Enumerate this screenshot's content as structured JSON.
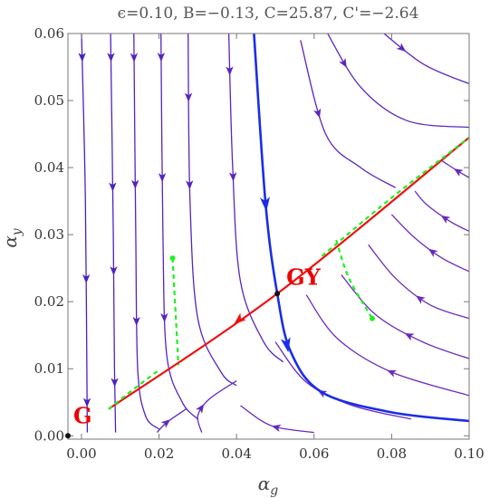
{
  "chart_data": {
    "type": "scatter",
    "title": "ϵ=0.10, B=−0.13, C=25.87, C'=−2.64",
    "xlabel": {
      "main": "α",
      "sub": "g"
    },
    "ylabel": {
      "main": "α",
      "sub": "y"
    },
    "xlim": [
      -0.0035,
      0.1
    ],
    "ylim": [
      -0.0005,
      0.06
    ],
    "x_ticks": [
      0.0,
      0.02,
      0.04,
      0.06,
      0.08,
      0.1
    ],
    "x_tick_labels": [
      "0.00",
      "0.02",
      "0.04",
      "0.06",
      "0.08",
      "0.10"
    ],
    "y_ticks": [
      0.0,
      0.01,
      0.02,
      0.03,
      0.04,
      0.05,
      0.06
    ],
    "y_tick_labels": [
      "0.00",
      "0.01",
      "0.02",
      "0.03",
      "0.04",
      "0.05",
      "0.06"
    ],
    "grid": false,
    "fixed_points": [
      {
        "label": "G",
        "x": -0.0035,
        "y": 0.0
      },
      {
        "label": "GY",
        "x": 0.0505,
        "y": 0.0212
      }
    ],
    "colors": {
      "separatrix": "#ee1111",
      "critical_curve": "#22ee22",
      "strong_flow": "#1a2de8",
      "flow_violet": "#7b2fb8",
      "flow_blue": "#3a1cc8",
      "frame": "#777777",
      "point": "#111111"
    },
    "separatrix": {
      "x": [
        0.007,
        0.0505,
        0.1
      ],
      "y": [
        0.004,
        0.0212,
        0.0445
      ]
    },
    "critical_curves": [
      {
        "x": [
          0.0235,
          0.0243,
          0.025
        ],
        "y": [
          0.0265,
          0.018,
          0.0105
        ]
      },
      {
        "x": [
          0.0657,
          0.069,
          0.075
        ],
        "y": [
          0.0292,
          0.0235,
          0.0175
        ]
      },
      {
        "x": [
          0.007,
          0.014,
          0.02
        ],
        "y": [
          0.004,
          0.0072,
          0.0098
        ]
      },
      {
        "x": [
          0.062,
          0.08,
          0.1
        ],
        "y": [
          0.0268,
          0.0355,
          0.0445
        ]
      }
    ],
    "strong_flow_line": {
      "x": [
        0.0445,
        0.0475,
        0.0505,
        0.054,
        0.062,
        0.08,
        0.1
      ],
      "y": [
        0.06,
        0.0345,
        0.0212,
        0.0125,
        0.0065,
        0.0035,
        0.0022
      ]
    },
    "flow_lines": [
      {
        "x": [
          0.0,
          0.001,
          0.0015
        ],
        "y": [
          0.06,
          0.035,
          0.0005
        ],
        "arrows": [
          0.0565,
          0.0235,
          0.005
        ]
      },
      {
        "x": [
          0.0075,
          0.0082,
          0.0085,
          0.0088
        ],
        "y": [
          0.06,
          0.03,
          0.01,
          0.0005
        ],
        "arrows": [
          0.0565,
          0.037,
          0.0245,
          0.008
        ]
      },
      {
        "x": [
          0.0135,
          0.014,
          0.0145,
          0.0165,
          0.02
        ],
        "y": [
          0.06,
          0.03,
          0.01,
          0.003,
          0.001
        ],
        "arrows": [
          0.0565,
          0.0375,
          0.017
        ]
      },
      {
        "x": [
          0.0205,
          0.021,
          0.022,
          0.026,
          0.03
        ],
        "y": [
          0.06,
          0.03,
          0.012,
          0.005,
          0.0025
        ],
        "arrows": [
          0.0565,
          0.0385,
          0.0175
        ]
      },
      {
        "x": [
          0.0275,
          0.028,
          0.03,
          0.036,
          0.04
        ],
        "y": [
          0.06,
          0.035,
          0.0175,
          0.0095,
          0.0075
        ],
        "arrows": [
          0.0505,
          0.0375
        ]
      },
      {
        "x": [
          0.038,
          0.039,
          0.041,
          0.047,
          0.052
        ],
        "y": [
          0.06,
          0.04,
          0.023,
          0.014,
          0.011
        ],
        "arrows": [
          0.0545,
          0.0385
        ]
      },
      {
        "x": [
          0.0565,
          0.063,
          0.072,
          0.081
        ],
        "y": [
          0.059,
          0.045,
          0.04,
          0.037
        ],
        "arrows": [
          0.048
        ]
      },
      {
        "x": [
          0.063,
          0.072,
          0.084,
          0.1
        ],
        "y": [
          0.0605,
          0.052,
          0.047,
          0.046
        ],
        "arrows": [
          0.0555
        ]
      },
      {
        "x": [
          0.076,
          0.088,
          0.1
        ],
        "y": [
          0.061,
          0.0555,
          0.0525
        ],
        "arrows": [
          0.0577
        ]
      },
      {
        "x": [
          0.06,
          0.049,
          0.041
        ],
        "y": [
          0.0005,
          0.0015,
          0.0045
        ],
        "arrows": [
          0.0013
        ]
      },
      {
        "x": [
          0.085,
          0.07,
          0.058,
          0.05
        ],
        "y": [
          0.0025,
          0.0045,
          0.008,
          0.014
        ],
        "arrows": [
          0.0065
        ]
      },
      {
        "x": [
          0.1,
          0.08,
          0.066,
          0.058
        ],
        "y": [
          0.006,
          0.0095,
          0.0145,
          0.021
        ],
        "arrows": [
          0.0095
        ]
      },
      {
        "x": [
          0.1,
          0.088,
          0.076,
          0.067
        ],
        "y": [
          0.0115,
          0.014,
          0.018,
          0.024
        ],
        "arrows": [
          0.015
        ]
      },
      {
        "x": [
          0.1,
          0.09,
          0.081,
          0.074
        ],
        "y": [
          0.0175,
          0.0195,
          0.0235,
          0.0285
        ],
        "arrows": [
          0.0205
        ]
      },
      {
        "x": [
          0.1,
          0.093,
          0.086,
          0.08
        ],
        "y": [
          0.0245,
          0.0265,
          0.0295,
          0.033
        ],
        "arrows": [
          0.0275
        ]
      },
      {
        "x": [
          0.1,
          0.095,
          0.089,
          0.086
        ],
        "y": [
          0.0305,
          0.032,
          0.0345,
          0.0365
        ],
        "arrows": [
          0.0325
        ]
      },
      {
        "x": [
          0.1,
          0.097,
          0.093
        ],
        "y": [
          0.0385,
          0.0395,
          0.041
        ],
        "arrows": [
          0.0395
        ]
      },
      {
        "x": [
          0.031,
          0.03,
          0.033,
          0.04
        ],
        "y": [
          0.0005,
          0.003,
          0.0055,
          0.0082
        ],
        "arrows": [
          0.0042
        ]
      },
      {
        "x": [
          0.0195,
          0.022,
          0.027
        ],
        "y": [
          0.0005,
          0.002,
          0.004
        ],
        "arrows": [
          0.002
        ]
      }
    ]
  }
}
